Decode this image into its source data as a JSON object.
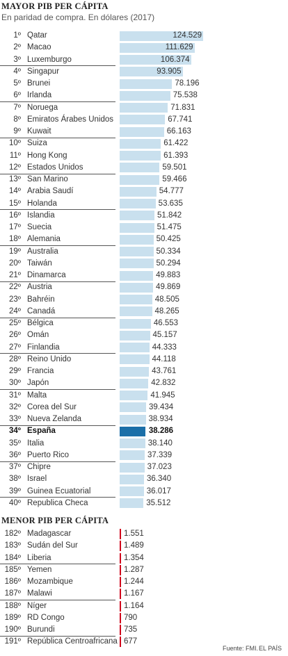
{
  "top_title": "MAYOR PIB PER CÁPITA",
  "subtitle": "En paridad de compra. En dólares (2017)",
  "bottom_title": "MENOR PIB PER CÁPITA",
  "source": "Fuente: FMI.",
  "brand": "EL PAÍS",
  "colors": {
    "bar": "#c9e0ee",
    "highlight": "#1b6fa8",
    "low_marker": "#d0021b"
  },
  "chart_data": [
    {
      "type": "bar",
      "orientation": "horizontal",
      "title": "MAYOR PIB PER CÁPITA",
      "subtitle": "En paridad de compra. En dólares (2017)",
      "xlim": [
        0,
        124529
      ],
      "highlight": "España",
      "rows": [
        {
          "rank": "1º",
          "country": "Qatar",
          "value": 124529,
          "label": "124.529"
        },
        {
          "rank": "2º",
          "country": "Macao",
          "value": 111629,
          "label": "111.629"
        },
        {
          "rank": "3º",
          "country": "Luxemburgo",
          "value": 106374,
          "label": "106.374"
        },
        {
          "rank": "4º",
          "country": "Singapur",
          "value": 93905,
          "label": "93.905"
        },
        {
          "rank": "5º",
          "country": "Brunei",
          "value": 78196,
          "label": "78.196"
        },
        {
          "rank": "6º",
          "country": "Irlanda",
          "value": 75538,
          "label": "75.538"
        },
        {
          "rank": "7º",
          "country": "Noruega",
          "value": 71831,
          "label": "71.831"
        },
        {
          "rank": "8º",
          "country": "Emiratos Árabes Unidos",
          "value": 67741,
          "label": "67.741"
        },
        {
          "rank": "9º",
          "country": "Kuwait",
          "value": 66163,
          "label": "66.163"
        },
        {
          "rank": "10º",
          "country": "Suiza",
          "value": 61422,
          "label": "61.422"
        },
        {
          "rank": "11º",
          "country": "Hong Kong",
          "value": 61393,
          "label": "61.393"
        },
        {
          "rank": "12º",
          "country": "Estados Unidos",
          "value": 59501,
          "label": "59.501"
        },
        {
          "rank": "13º",
          "country": "San Marino",
          "value": 59466,
          "label": "59.466"
        },
        {
          "rank": "14º",
          "country": "Arabia Saudí",
          "value": 54777,
          "label": "54.777"
        },
        {
          "rank": "15º",
          "country": "Holanda",
          "value": 53635,
          "label": "53.635"
        },
        {
          "rank": "16º",
          "country": "Islandia",
          "value": 51842,
          "label": "51.842"
        },
        {
          "rank": "17º",
          "country": "Suecia",
          "value": 51475,
          "label": "51.475"
        },
        {
          "rank": "18º",
          "country": "Alemania",
          "value": 50425,
          "label": "50.425"
        },
        {
          "rank": "19º",
          "country": "Australia",
          "value": 50334,
          "label": "50.334"
        },
        {
          "rank": "20º",
          "country": "Taiwán",
          "value": 50294,
          "label": "50.294"
        },
        {
          "rank": "21º",
          "country": "Dinamarca",
          "value": 49883,
          "label": "49.883"
        },
        {
          "rank": "22º",
          "country": "Austria",
          "value": 49869,
          "label": "49.869"
        },
        {
          "rank": "23º",
          "country": "Bahréin",
          "value": 48505,
          "label": "48.505"
        },
        {
          "rank": "24º",
          "country": "Canadá",
          "value": 48265,
          "label": "48.265"
        },
        {
          "rank": "25º",
          "country": "Bélgica",
          "value": 46553,
          "label": "46.553"
        },
        {
          "rank": "26º",
          "country": "Omán",
          "value": 45157,
          "label": "45.157"
        },
        {
          "rank": "27º",
          "country": "Finlandia",
          "value": 44333,
          "label": "44.333"
        },
        {
          "rank": "28º",
          "country": "Reino Unido",
          "value": 44118,
          "label": "44.118"
        },
        {
          "rank": "29º",
          "country": "Francia",
          "value": 43761,
          "label": "43.761"
        },
        {
          "rank": "30º",
          "country": "Japón",
          "value": 42832,
          "label": "42.832"
        },
        {
          "rank": "31º",
          "country": "Malta",
          "value": 41945,
          "label": "41.945"
        },
        {
          "rank": "32º",
          "country": "Corea del Sur",
          "value": 39434,
          "label": "39.434"
        },
        {
          "rank": "33º",
          "country": "Nueva Zelanda",
          "value": 38934,
          "label": "38.934"
        },
        {
          "rank": "34º",
          "country": "España",
          "value": 38286,
          "label": "38.286"
        },
        {
          "rank": "35º",
          "country": "Italia",
          "value": 38140,
          "label": "38.140"
        },
        {
          "rank": "36º",
          "country": "Puerto Rico",
          "value": 37339,
          "label": "37.339"
        },
        {
          "rank": "37º",
          "country": "Chipre",
          "value": 37023,
          "label": "37.023"
        },
        {
          "rank": "38º",
          "country": "Israel",
          "value": 36340,
          "label": "36.340"
        },
        {
          "rank": "39º",
          "country": "Guinea Ecuatorial",
          "value": 36017,
          "label": "36.017"
        },
        {
          "rank": "40º",
          "country": "Republica Checa",
          "value": 35512,
          "label": "35.512"
        }
      ]
    },
    {
      "type": "bar",
      "orientation": "horizontal",
      "title": "MENOR PIB PER CÁPITA",
      "xlim": [
        0,
        124529
      ],
      "rows": [
        {
          "rank": "182º",
          "country": "Madagascar",
          "value": 1551,
          "label": "1.551"
        },
        {
          "rank": "183º",
          "country": "Sudán del Sur",
          "value": 1489,
          "label": "1.489"
        },
        {
          "rank": "184º",
          "country": "Liberia",
          "value": 1354,
          "label": "1.354"
        },
        {
          "rank": "185º",
          "country": "Yemen",
          "value": 1287,
          "label": "1.287"
        },
        {
          "rank": "186º",
          "country": "Mozambique",
          "value": 1244,
          "label": "1.244"
        },
        {
          "rank": "187º",
          "country": "Malawi",
          "value": 1167,
          "label": "1.167"
        },
        {
          "rank": "188º",
          "country": "Níger",
          "value": 1164,
          "label": "1.164"
        },
        {
          "rank": "189º",
          "country": "RD Congo",
          "value": 790,
          "label": "790"
        },
        {
          "rank": "190º",
          "country": "Burundi",
          "value": 735,
          "label": "735"
        },
        {
          "rank": "191º",
          "country": "República Centroafricana",
          "value": 677,
          "label": "677"
        }
      ]
    }
  ]
}
